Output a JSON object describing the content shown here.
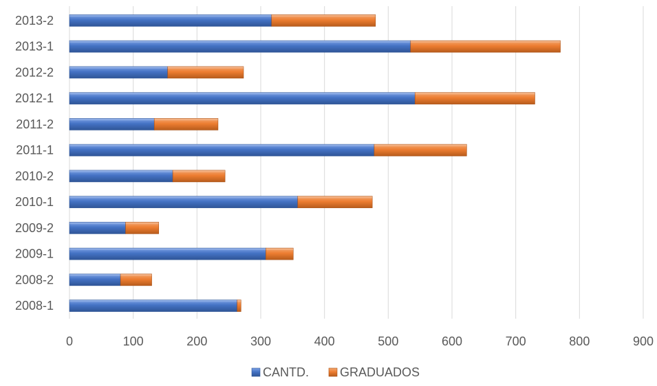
{
  "chart_data": {
    "type": "bar",
    "orientation": "horizontal",
    "stacked": true,
    "categories": [
      "2008-1",
      "2008-2",
      "2009-1",
      "2009-2",
      "2010-1",
      "2010-2",
      "2011-1",
      "2011-2",
      "2012-1",
      "2012-2",
      "2013-1",
      "2013-2"
    ],
    "series": [
      {
        "name": "CANTD.",
        "color": "#4472C4",
        "values": [
          263,
          80,
          308,
          88,
          358,
          162,
          478,
          133,
          542,
          154,
          535,
          317
        ]
      },
      {
        "name": "GRADUADOS",
        "color": "#ED7D31",
        "values": [
          6,
          49,
          43,
          52,
          117,
          82,
          145,
          100,
          188,
          119,
          235,
          163
        ]
      }
    ],
    "xlim": [
      0,
      900
    ],
    "xticks": [
      0,
      100,
      200,
      300,
      400,
      500,
      600,
      700,
      800,
      900
    ],
    "grid": true,
    "legend_position": "bottom"
  }
}
